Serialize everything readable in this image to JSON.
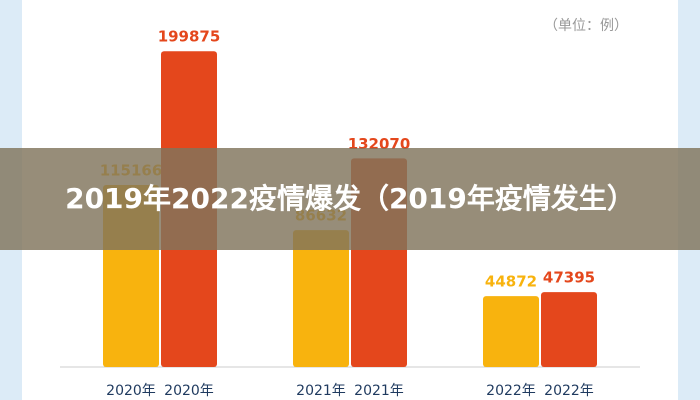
{
  "chart_data": {
    "type": "bar",
    "unit_note": "（单位：例）",
    "categories": [
      "2020年",
      "2021年",
      "2022年"
    ],
    "series": [
      {
        "color": "#f8b30e",
        "values": [
          115166,
          86632,
          44872
        ]
      },
      {
        "color": "#e4471c",
        "values": [
          199875,
          132070,
          47395
        ]
      }
    ],
    "ylim": [
      0,
      200000
    ]
  },
  "caption": "2019年2022疫情爆发（2019年疫情发生）"
}
